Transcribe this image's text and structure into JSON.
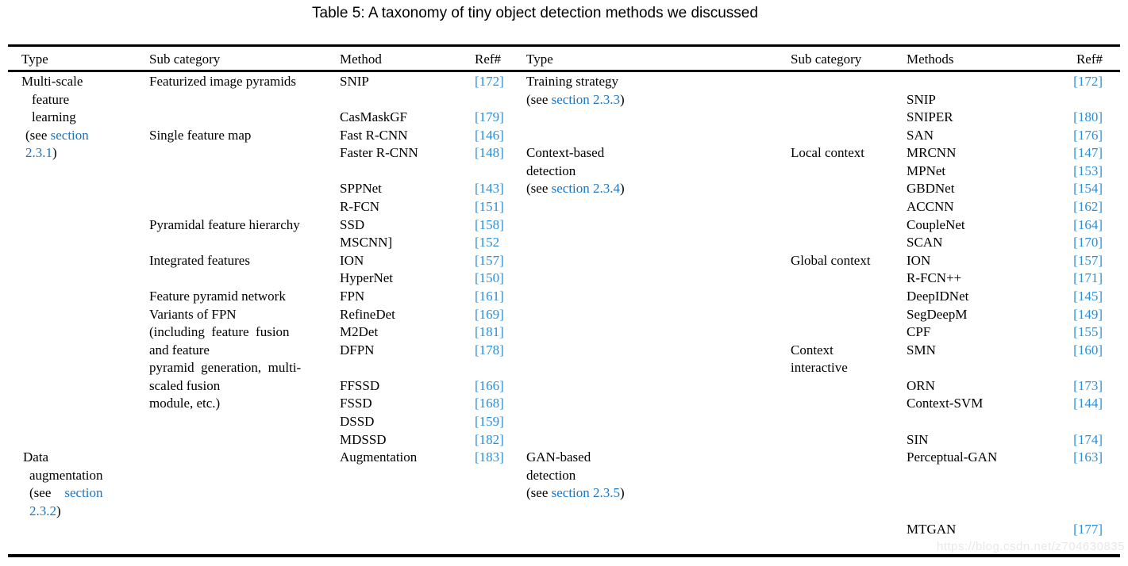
{
  "title": "Table 5: A taxonomy of tiny object detection methods we discussed",
  "watermark": "https://blog.csdn.net/z704630835",
  "colors": {
    "text": "#000000",
    "link": "#1a77c5",
    "ref": "#2a8fd9",
    "watermark": "#e8e8e8"
  },
  "table": {
    "headers": [
      "Type",
      "Sub category",
      "Method",
      "Ref#",
      "Type",
      "Sub category",
      "Methods",
      "Ref#"
    ],
    "rows": [
      [
        "Multi-scale",
        "Featurized image pyramids",
        "SNIP",
        {
          "ref": "[172]"
        },
        "Training strategy",
        "",
        "",
        {
          "ref": "[172]"
        }
      ],
      [
        {
          "text": "feature",
          "pad": 13
        },
        "",
        "",
        "",
        {
          "segs": [
            [
              "(see ",
              "p"
            ],
            [
              "section 2.3.3",
              "l"
            ],
            [
              ")",
              "p"
            ]
          ]
        },
        "",
        "SNIP",
        ""
      ],
      [
        {
          "text": "learning",
          "pad": 13
        },
        "",
        "CasMaskGF",
        {
          "ref": "[179]"
        },
        "",
        "",
        "SNIPER",
        {
          "ref": "[180]"
        }
      ],
      [
        {
          "segs": [
            [
              "(see ",
              "p"
            ],
            [
              "section",
              "l"
            ]
          ],
          "pad": 5
        },
        "Single feature map",
        "Fast R-CNN",
        {
          "ref": "[146]"
        },
        "",
        "",
        "SAN",
        {
          "ref": "[176]"
        }
      ],
      [
        {
          "segs": [
            [
              "2.3.1",
              "l"
            ],
            [
              ")",
              "p"
            ]
          ],
          "pad": 5
        },
        "",
        "Faster R-CNN",
        {
          "ref": "[148]"
        },
        "Context-based",
        "Local context",
        "MRCNN",
        {
          "ref": "[147]"
        }
      ],
      [
        "",
        "",
        "",
        "",
        "detection",
        "",
        "MPNet",
        {
          "ref": "[153]"
        }
      ],
      [
        "",
        "",
        "SPPNet",
        {
          "ref": "[143]"
        },
        {
          "segs": [
            [
              "(see ",
              "p"
            ],
            [
              "section 2.3.4",
              "l"
            ],
            [
              ")",
              "p"
            ]
          ]
        },
        "",
        "GBDNet",
        {
          "ref": "[154]"
        }
      ],
      [
        "",
        "",
        "R-FCN",
        {
          "ref": "[151]"
        },
        "",
        "",
        "ACCNN",
        {
          "ref": "[162]"
        }
      ],
      [
        "",
        "Pyramidal feature hierarchy",
        "SSD",
        {
          "ref": "[158]"
        },
        "",
        "",
        "CoupleNet",
        {
          "ref": "[164]"
        }
      ],
      [
        "",
        "",
        "MSCNN]",
        {
          "ref": "[152"
        },
        "",
        "",
        "SCAN",
        {
          "ref": "[170]"
        }
      ],
      [
        "",
        "Integrated features",
        "ION",
        {
          "ref": "[157]"
        },
        "",
        "Global context",
        "ION",
        {
          "ref": "[157]"
        }
      ],
      [
        "",
        "",
        "HyperNet",
        {
          "ref": "[150]"
        },
        "",
        "",
        "R-FCN++",
        {
          "ref": "[171]"
        }
      ],
      [
        "",
        "Feature pyramid network",
        "FPN",
        {
          "ref": "[161]"
        },
        "",
        "",
        "DeepIDNet",
        {
          "ref": "[145]"
        }
      ],
      [
        "",
        "Variants of FPN",
        "RefineDet",
        {
          "ref": "[169]"
        },
        "",
        "",
        "SegDeepM",
        {
          "ref": "[149]"
        }
      ],
      [
        "",
        "(including  feature  fusion",
        "M2Det",
        {
          "ref": "[181]"
        },
        "",
        "",
        "CPF",
        {
          "ref": "[155]"
        }
      ],
      [
        "",
        "and feature",
        "DFPN",
        {
          "ref": "[178]"
        },
        "",
        "Context",
        "SMN",
        {
          "ref": "[160]"
        }
      ],
      [
        "",
        "pyramid  generation,  multi-",
        "",
        "",
        "",
        "interactive",
        "",
        ""
      ],
      [
        "",
        "scaled fusion",
        "FFSSD",
        {
          "ref": "[166]"
        },
        "",
        "",
        "ORN",
        {
          "ref": "[173]"
        }
      ],
      [
        "",
        "module, etc.)",
        "FSSD",
        {
          "ref": "[168]"
        },
        "",
        "",
        "Context-SVM",
        {
          "ref": "[144]"
        }
      ],
      [
        "",
        "",
        "DSSD",
        {
          "ref": "[159]"
        },
        "",
        "",
        "",
        ""
      ],
      [
        "",
        "",
        "MDSSD",
        {
          "ref": "[182]"
        },
        "",
        "",
        "SIN",
        {
          "ref": "[174]"
        }
      ],
      [
        {
          "text": "Data",
          "pad": 2
        },
        "",
        "Augmentation",
        {
          "ref": "[183]"
        },
        "GAN-based",
        "",
        "Perceptual-GAN",
        {
          "ref": "[163]"
        }
      ],
      [
        {
          "text": "augmentation",
          "pad": 10
        },
        "",
        "",
        "",
        "detection",
        "",
        "",
        ""
      ],
      [
        {
          "segs": [
            [
              "(see    ",
              "p"
            ],
            [
              "section",
              "l"
            ]
          ],
          "pad": 10
        },
        "",
        "",
        "",
        {
          "segs": [
            [
              "(see ",
              "p"
            ],
            [
              "section 2.3.5",
              "l"
            ],
            [
              ")",
              "p"
            ]
          ]
        },
        "",
        "",
        ""
      ],
      [
        {
          "segs": [
            [
              "2.3.2",
              "l"
            ],
            [
              ")",
              "p"
            ]
          ],
          "pad": 10
        },
        "",
        "",
        "",
        "",
        "",
        "",
        ""
      ],
      [
        "",
        "",
        "",
        "",
        "",
        "",
        "MTGAN",
        {
          "ref": "[177]"
        }
      ]
    ]
  }
}
